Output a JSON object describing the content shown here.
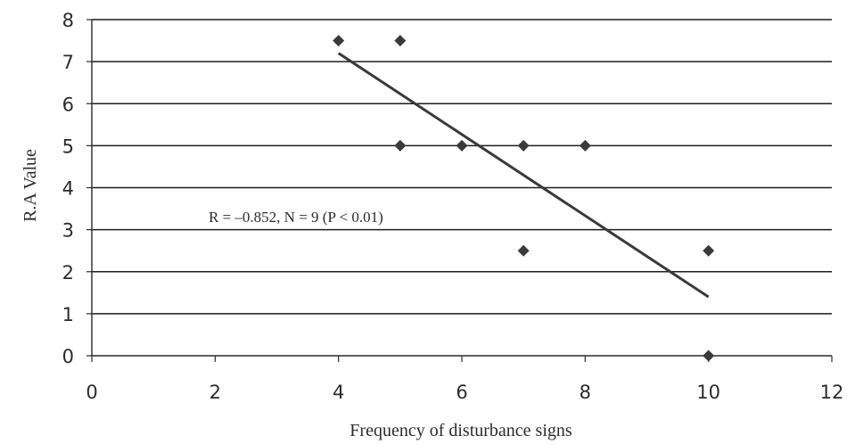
{
  "chart_data": {
    "type": "scatter",
    "xlabel": "Frequency of disturbance signs",
    "ylabel": "R.A Value",
    "xlim": [
      0,
      12
    ],
    "ylim": [
      0,
      8
    ],
    "xticks": [
      0,
      2,
      4,
      6,
      8,
      10,
      12
    ],
    "yticks": [
      0,
      1,
      2,
      3,
      4,
      5,
      6,
      7,
      8
    ],
    "x_tick_labels": [
      "0",
      "2",
      "4",
      "6",
      "8",
      "10",
      "12"
    ],
    "y_tick_labels": [
      "0",
      "1",
      "2",
      "3",
      "4",
      "5",
      "6",
      "7",
      "8"
    ],
    "grid": "horizontal",
    "legend": "none",
    "points": [
      {
        "x": 4,
        "y": 7.5
      },
      {
        "x": 5,
        "y": 7.5
      },
      {
        "x": 5,
        "y": 5
      },
      {
        "x": 6,
        "y": 5
      },
      {
        "x": 7,
        "y": 5
      },
      {
        "x": 8,
        "y": 5
      },
      {
        "x": 7,
        "y": 2.5
      },
      {
        "x": 10,
        "y": 2.5
      },
      {
        "x": 10,
        "y": 0
      }
    ],
    "trendline": {
      "x": [
        4,
        10
      ],
      "y": [
        7.2,
        1.4
      ]
    },
    "annotation": "R = –0.852, N = 9 (P < 0.01)",
    "colors": {
      "marker": "#3a3a3a",
      "gridline": "#1e1e1e",
      "text": "#2c2c2c"
    }
  }
}
